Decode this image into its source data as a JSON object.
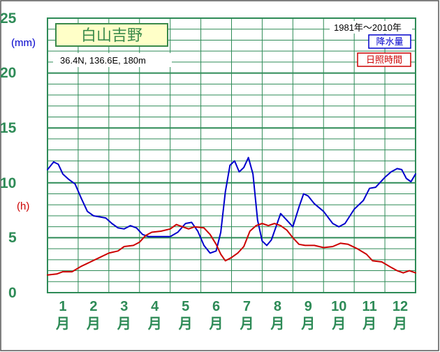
{
  "chart_data": {
    "type": "line",
    "title": "白山吉野",
    "subtitle": "36.4N,  136.6E,  180m",
    "period": "1981年〜2010年",
    "y_unit_precip": "(mm)",
    "y_unit_sun": "(h)",
    "ylim": [
      0,
      25
    ],
    "y_ticks": [
      "0",
      "5",
      "10",
      "15",
      "20",
      "25"
    ],
    "months": [
      {
        "num": "1",
        "kanji": "月"
      },
      {
        "num": "2",
        "kanji": "月"
      },
      {
        "num": "3",
        "kanji": "月"
      },
      {
        "num": "4",
        "kanji": "月"
      },
      {
        "num": "5",
        "kanji": "月"
      },
      {
        "num": "6",
        "kanji": "月"
      },
      {
        "num": "7",
        "kanji": "月"
      },
      {
        "num": "8",
        "kanji": "月"
      },
      {
        "num": "9",
        "kanji": "月"
      },
      {
        "num": "10",
        "kanji": "月"
      },
      {
        "num": "11",
        "kanji": "月"
      },
      {
        "num": "12",
        "kanji": "月"
      }
    ],
    "grid": true,
    "legend_position": "top-right",
    "x_range": [
      0.5,
      12.5
    ],
    "series": [
      {
        "name": "降水量",
        "color": "#0000cc",
        "points": [
          [
            0.5,
            11.2
          ],
          [
            0.7,
            11.9
          ],
          [
            0.85,
            11.7
          ],
          [
            1.0,
            10.8
          ],
          [
            1.2,
            10.3
          ],
          [
            1.4,
            9.9
          ],
          [
            1.6,
            8.6
          ],
          [
            1.8,
            7.4
          ],
          [
            2.0,
            7.0
          ],
          [
            2.2,
            6.9
          ],
          [
            2.4,
            6.8
          ],
          [
            2.6,
            6.3
          ],
          [
            2.8,
            5.9
          ],
          [
            3.0,
            5.8
          ],
          [
            3.2,
            6.1
          ],
          [
            3.4,
            5.9
          ],
          [
            3.6,
            5.3
          ],
          [
            3.8,
            5.1
          ],
          [
            4.0,
            5.1
          ],
          [
            4.2,
            5.1
          ],
          [
            4.5,
            5.1
          ],
          [
            4.75,
            5.5
          ],
          [
            5.0,
            6.3
          ],
          [
            5.2,
            6.4
          ],
          [
            5.4,
            5.6
          ],
          [
            5.6,
            4.3
          ],
          [
            5.8,
            3.6
          ],
          [
            6.0,
            3.8
          ],
          [
            6.15,
            5.5
          ],
          [
            6.3,
            9.2
          ],
          [
            6.45,
            11.6
          ],
          [
            6.6,
            12.0
          ],
          [
            6.75,
            11.0
          ],
          [
            6.9,
            11.4
          ],
          [
            7.05,
            12.3
          ],
          [
            7.2,
            10.8
          ],
          [
            7.35,
            6.6
          ],
          [
            7.5,
            4.7
          ],
          [
            7.65,
            4.3
          ],
          [
            7.8,
            4.8
          ],
          [
            7.95,
            6.0
          ],
          [
            8.1,
            7.2
          ],
          [
            8.3,
            6.6
          ],
          [
            8.5,
            6.0
          ],
          [
            8.7,
            7.8
          ],
          [
            8.85,
            9.0
          ],
          [
            9.0,
            8.8
          ],
          [
            9.2,
            8.1
          ],
          [
            9.5,
            7.4
          ],
          [
            9.8,
            6.3
          ],
          [
            10.0,
            6.0
          ],
          [
            10.2,
            6.3
          ],
          [
            10.5,
            7.6
          ],
          [
            10.8,
            8.4
          ],
          [
            11.0,
            9.5
          ],
          [
            11.2,
            9.6
          ],
          [
            11.5,
            10.5
          ],
          [
            11.7,
            11.0
          ],
          [
            11.9,
            11.3
          ],
          [
            12.05,
            11.2
          ],
          [
            12.2,
            10.4
          ],
          [
            12.35,
            10.1
          ],
          [
            12.5,
            10.8
          ]
        ]
      },
      {
        "name": "日照時間",
        "color": "#cc0000",
        "points": [
          [
            0.5,
            1.6
          ],
          [
            0.8,
            1.7
          ],
          [
            1.0,
            1.9
          ],
          [
            1.3,
            1.9
          ],
          [
            1.6,
            2.4
          ],
          [
            1.9,
            2.8
          ],
          [
            2.2,
            3.2
          ],
          [
            2.5,
            3.6
          ],
          [
            2.8,
            3.8
          ],
          [
            3.0,
            4.2
          ],
          [
            3.3,
            4.3
          ],
          [
            3.5,
            4.6
          ],
          [
            3.7,
            5.2
          ],
          [
            3.9,
            5.5
          ],
          [
            4.2,
            5.6
          ],
          [
            4.5,
            5.8
          ],
          [
            4.7,
            6.2
          ],
          [
            4.9,
            6.0
          ],
          [
            5.1,
            5.8
          ],
          [
            5.3,
            6.0
          ],
          [
            5.6,
            5.9
          ],
          [
            5.8,
            5.3
          ],
          [
            6.0,
            4.4
          ],
          [
            6.15,
            3.5
          ],
          [
            6.3,
            2.9
          ],
          [
            6.5,
            3.2
          ],
          [
            6.7,
            3.6
          ],
          [
            6.9,
            4.2
          ],
          [
            7.1,
            5.6
          ],
          [
            7.3,
            6.1
          ],
          [
            7.5,
            6.3
          ],
          [
            7.7,
            6.1
          ],
          [
            7.9,
            6.3
          ],
          [
            8.1,
            6.1
          ],
          [
            8.3,
            5.7
          ],
          [
            8.5,
            5.0
          ],
          [
            8.7,
            4.4
          ],
          [
            8.9,
            4.3
          ],
          [
            9.2,
            4.3
          ],
          [
            9.5,
            4.1
          ],
          [
            9.8,
            4.2
          ],
          [
            10.05,
            4.5
          ],
          [
            10.3,
            4.4
          ],
          [
            10.6,
            4.0
          ],
          [
            10.9,
            3.5
          ],
          [
            11.1,
            2.9
          ],
          [
            11.4,
            2.8
          ],
          [
            11.7,
            2.3
          ],
          [
            11.9,
            2.0
          ],
          [
            12.1,
            1.8
          ],
          [
            12.3,
            2.0
          ],
          [
            12.5,
            1.8
          ]
        ]
      }
    ]
  }
}
